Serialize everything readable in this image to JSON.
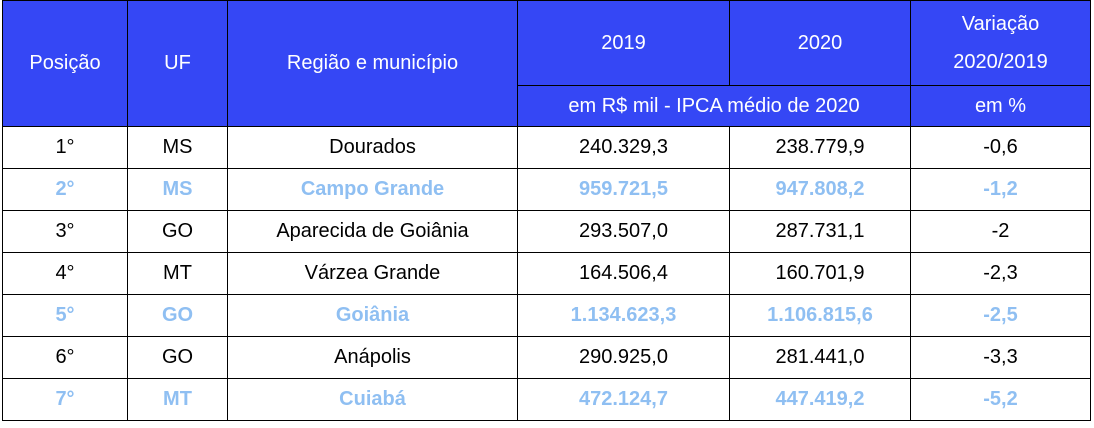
{
  "header": {
    "posicao": "Posição",
    "uf": "UF",
    "regiao": "Região e município",
    "y2019": "2019",
    "y2020": "2020",
    "variacao_line1": "Variação",
    "variacao_line2": "2020/2019",
    "unit_values": "em R$ mil - IPCA médio de 2020",
    "unit_percent": "em %"
  },
  "rows": [
    {
      "pos": "1°",
      "uf": "MS",
      "municipio": "Dourados",
      "v2019": "240.329,3",
      "v2020": "238.779,9",
      "var": "-0,6",
      "highlight": false
    },
    {
      "pos": "2°",
      "uf": "MS",
      "municipio": "Campo Grande",
      "v2019": "959.721,5",
      "v2020": "947.808,2",
      "var": "-1,2",
      "highlight": true
    },
    {
      "pos": "3°",
      "uf": "GO",
      "municipio": "Aparecida de Goiânia",
      "v2019": "293.507,0",
      "v2020": "287.731,1",
      "var": "-2",
      "highlight": false
    },
    {
      "pos": "4°",
      "uf": "MT",
      "municipio": "Várzea Grande",
      "v2019": "164.506,4",
      "v2020": "160.701,9",
      "var": "-2,3",
      "highlight": false
    },
    {
      "pos": "5°",
      "uf": "GO",
      "municipio": "Goiânia",
      "v2019": "1.134.623,3",
      "v2020": "1.106.815,6",
      "var": "-2,5",
      "highlight": true
    },
    {
      "pos": "6°",
      "uf": "GO",
      "municipio": "Anápolis",
      "v2019": "290.925,0",
      "v2020": "281.441,0",
      "var": "-3,3",
      "highlight": false
    },
    {
      "pos": "7°",
      "uf": "MT",
      "municipio": "Cuiabá",
      "v2019": "472.124,7",
      "v2020": "447.419,2",
      "var": "-5,2",
      "highlight": true
    }
  ],
  "colors": {
    "header_bg": "#3547f5",
    "header_text": "#ffffff",
    "highlight_text": "#8fbff2",
    "border": "#000000"
  }
}
